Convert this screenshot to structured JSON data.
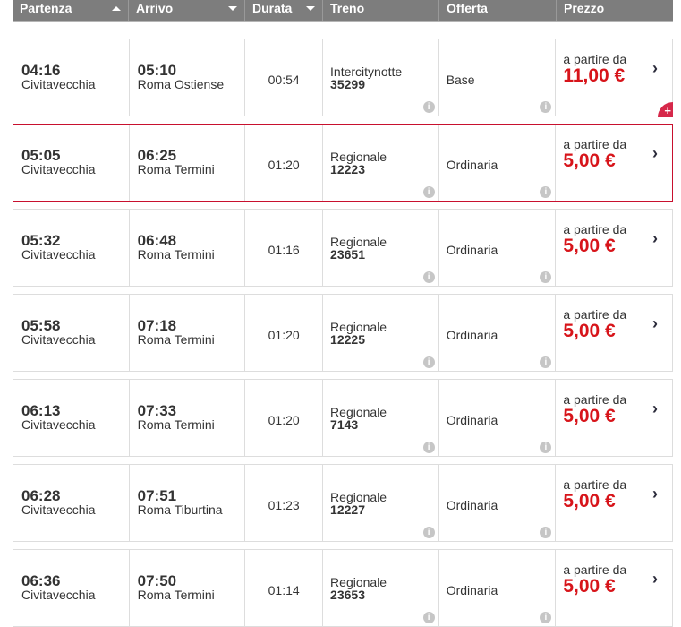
{
  "header": {
    "columns": [
      {
        "label": "Partenza",
        "sort": "asc"
      },
      {
        "label": "Arrivo",
        "sort": "desc"
      },
      {
        "label": "Durata",
        "sort": "desc"
      },
      {
        "label": "Treno"
      },
      {
        "label": "Offerta"
      },
      {
        "label": "Prezzo"
      }
    ]
  },
  "colors": {
    "price": "#d7141a",
    "selected_border": "#c8102e",
    "header_bg": "#7d7d7d"
  },
  "price_prefix": "a partire da",
  "rows": [
    {
      "dep": "04:16",
      "from": "Civitavecchia",
      "arr": "05:10",
      "to": "Roma Ostiense",
      "dur": "00:54",
      "train": "Intercitynotte",
      "num": "35299",
      "offer": "Base",
      "price": "11,00 €"
    },
    {
      "dep": "05:05",
      "from": "Civitavecchia",
      "arr": "06:25",
      "to": "Roma Termini",
      "dur": "01:20",
      "train": "Regionale",
      "num": "12223",
      "offer": "Ordinaria",
      "price": "5,00 €",
      "selected": true
    },
    {
      "dep": "05:32",
      "from": "Civitavecchia",
      "arr": "06:48",
      "to": "Roma Termini",
      "dur": "01:16",
      "train": "Regionale",
      "num": "23651",
      "offer": "Ordinaria",
      "price": "5,00 €"
    },
    {
      "dep": "05:58",
      "from": "Civitavecchia",
      "arr": "07:18",
      "to": "Roma Termini",
      "dur": "01:20",
      "train": "Regionale",
      "num": "12225",
      "offer": "Ordinaria",
      "price": "5,00 €"
    },
    {
      "dep": "06:13",
      "from": "Civitavecchia",
      "arr": "07:33",
      "to": "Roma Termini",
      "dur": "01:20",
      "train": "Regionale",
      "num": "7143",
      "offer": "Ordinaria",
      "price": "5,00 €"
    },
    {
      "dep": "06:28",
      "from": "Civitavecchia",
      "arr": "07:51",
      "to": "Roma Tiburtina",
      "dur": "01:23",
      "train": "Regionale",
      "num": "12227",
      "offer": "Ordinaria",
      "price": "5,00 €"
    },
    {
      "dep": "06:36",
      "from": "Civitavecchia",
      "arr": "07:50",
      "to": "Roma Termini",
      "dur": "01:14",
      "train": "Regionale",
      "num": "23653",
      "offer": "Ordinaria",
      "price": "5,00 €"
    }
  ]
}
